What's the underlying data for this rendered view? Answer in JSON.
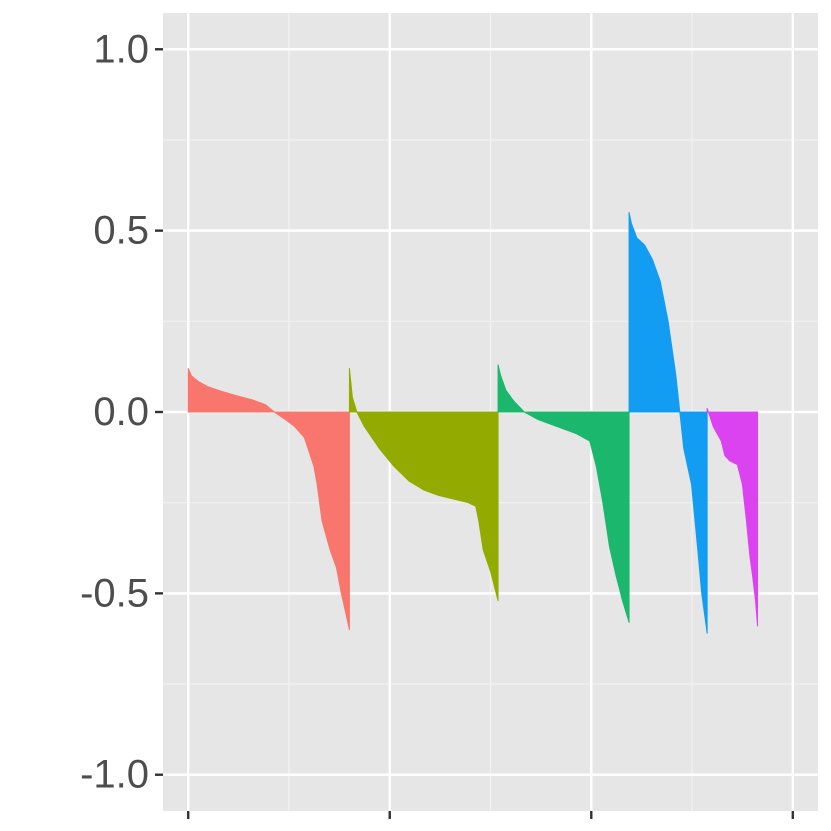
{
  "chart_data": {
    "type": "area",
    "title": "",
    "xlabel": "",
    "ylabel": "",
    "ylim": [
      -1.1,
      1.1
    ],
    "xlim": [
      0,
      13
    ],
    "y_ticks": [
      {
        "value": 1.0,
        "label": "1.0"
      },
      {
        "value": 0.5,
        "label": "0.5"
      },
      {
        "value": 0.0,
        "label": "0.0"
      },
      {
        "value": -0.5,
        "label": "-0.5"
      },
      {
        "value": -1.0,
        "label": "-1.0"
      }
    ],
    "x_major": [
      0.5,
      4.5,
      8.5,
      12.5
    ],
    "x_minor": [
      2.5,
      6.5,
      10.5
    ],
    "grid": true,
    "legend": "none",
    "series": [
      {
        "color": "#F8766D",
        "x_start": 0.5,
        "x_end": 3.7,
        "points": [
          [
            0.0,
            0.12
          ],
          [
            0.02,
            0.1
          ],
          [
            0.06,
            0.085
          ],
          [
            0.12,
            0.07
          ],
          [
            0.2,
            0.058
          ],
          [
            0.3,
            0.045
          ],
          [
            0.4,
            0.033
          ],
          [
            0.48,
            0.02
          ],
          [
            0.52,
            0.005
          ],
          [
            0.55,
            -0.005
          ],
          [
            0.6,
            -0.02
          ],
          [
            0.66,
            -0.04
          ],
          [
            0.72,
            -0.07
          ],
          [
            0.78,
            -0.15
          ],
          [
            0.8,
            -0.2
          ],
          [
            0.83,
            -0.3
          ],
          [
            0.88,
            -0.38
          ],
          [
            0.92,
            -0.43
          ],
          [
            0.95,
            -0.5
          ],
          [
            0.98,
            -0.56
          ],
          [
            1.0,
            -0.6
          ]
        ]
      },
      {
        "color": "#93AA00",
        "x_start": 3.7,
        "x_end": 6.65,
        "points": [
          [
            0.0,
            0.12
          ],
          [
            0.02,
            0.04
          ],
          [
            0.05,
            0.0
          ],
          [
            0.1,
            -0.04
          ],
          [
            0.2,
            -0.1
          ],
          [
            0.3,
            -0.15
          ],
          [
            0.4,
            -0.19
          ],
          [
            0.5,
            -0.215
          ],
          [
            0.6,
            -0.23
          ],
          [
            0.7,
            -0.24
          ],
          [
            0.8,
            -0.25
          ],
          [
            0.85,
            -0.26
          ],
          [
            0.87,
            -0.3
          ],
          [
            0.9,
            -0.38
          ],
          [
            0.95,
            -0.44
          ],
          [
            1.0,
            -0.52
          ]
        ]
      },
      {
        "color": "#1AB76D",
        "x_start": 6.65,
        "x_end": 9.25,
        "points": [
          [
            0.0,
            0.13
          ],
          [
            0.02,
            0.1
          ],
          [
            0.06,
            0.06
          ],
          [
            0.12,
            0.03
          ],
          [
            0.2,
            0.0
          ],
          [
            0.3,
            -0.02
          ],
          [
            0.45,
            -0.04
          ],
          [
            0.6,
            -0.06
          ],
          [
            0.7,
            -0.08
          ],
          [
            0.75,
            -0.15
          ],
          [
            0.8,
            -0.25
          ],
          [
            0.85,
            -0.37
          ],
          [
            0.9,
            -0.45
          ],
          [
            0.95,
            -0.52
          ],
          [
            1.0,
            -0.58
          ]
        ]
      },
      {
        "color": "#129DF2",
        "x_start": 9.25,
        "x_end": 10.8,
        "points": [
          [
            0.0,
            0.55
          ],
          [
            0.03,
            0.52
          ],
          [
            0.1,
            0.48
          ],
          [
            0.2,
            0.46
          ],
          [
            0.3,
            0.42
          ],
          [
            0.4,
            0.36
          ],
          [
            0.5,
            0.25
          ],
          [
            0.6,
            0.1
          ],
          [
            0.65,
            0.0
          ],
          [
            0.7,
            -0.1
          ],
          [
            0.8,
            -0.2
          ],
          [
            0.88,
            -0.38
          ],
          [
            0.93,
            -0.5
          ],
          [
            1.0,
            -0.61
          ]
        ]
      },
      {
        "color": "#DB42F0",
        "x_start": 10.8,
        "x_end": 11.8,
        "points": [
          [
            0.0,
            0.01
          ],
          [
            0.05,
            -0.01
          ],
          [
            0.12,
            -0.04
          ],
          [
            0.2,
            -0.06
          ],
          [
            0.28,
            -0.08
          ],
          [
            0.35,
            -0.12
          ],
          [
            0.45,
            -0.135
          ],
          [
            0.6,
            -0.145
          ],
          [
            0.7,
            -0.2
          ],
          [
            0.78,
            -0.3
          ],
          [
            0.85,
            -0.4
          ],
          [
            0.9,
            -0.45
          ],
          [
            0.96,
            -0.52
          ],
          [
            1.0,
            -0.59
          ]
        ]
      }
    ]
  }
}
